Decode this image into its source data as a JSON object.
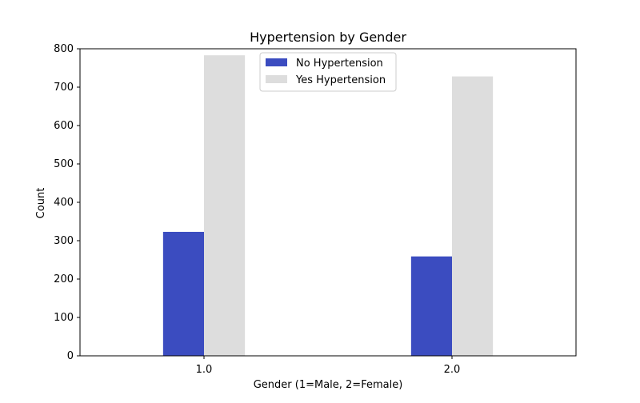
{
  "chart_data": {
    "type": "bar",
    "title": "Hypertension by Gender",
    "xlabel": "Gender (1=Male, 2=Female)",
    "ylabel": "Count",
    "categories": [
      "1.0",
      "2.0"
    ],
    "ylim": [
      0,
      800
    ],
    "xlim": [
      -0.5,
      1.5
    ],
    "yticks": [
      0,
      100,
      200,
      300,
      400,
      500,
      600,
      700,
      800
    ],
    "ytick_labels": [
      "0",
      "100",
      "200",
      "300",
      "400",
      "500",
      "600",
      "700",
      "800"
    ],
    "grid": false,
    "legend_position": "top-center",
    "series": [
      {
        "name": "No Hypertension",
        "values": [
          323,
          259
        ],
        "color": "#3b4cc0"
      },
      {
        "name": "Yes Hypertension",
        "values": [
          783,
          728
        ],
        "color": "#dddddd"
      }
    ]
  }
}
